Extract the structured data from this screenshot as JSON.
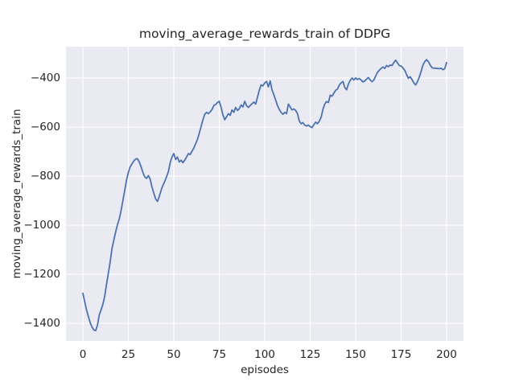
{
  "chart_data": {
    "type": "line",
    "title": "moving_average_rewards_train of DDPG",
    "xlabel": "episodes",
    "ylabel": "moving_average_rewards_train",
    "legend": null,
    "grid": true,
    "style": {
      "axes_background": "#eaeaf2",
      "gridline_color": "#ffffff",
      "line_color": "#4c72b0",
      "line_width": 1.8,
      "text_color": "#262626",
      "figure_background": "#ffffff"
    },
    "x_axis": {
      "ticks": [
        0,
        25,
        50,
        75,
        100,
        125,
        150,
        175,
        200
      ],
      "tick_labels": [
        "0",
        "25",
        "50",
        "75",
        "100",
        "125",
        "150",
        "175",
        "200"
      ],
      "range": [
        -9.3,
        209.3
      ]
    },
    "y_axis": {
      "ticks": [
        -400,
        -600,
        -800,
        -1000,
        -1200,
        -1400
      ],
      "tick_labels": [
        "−400",
        "−600",
        "−800",
        "−1000",
        "−1200",
        "−1400"
      ],
      "range": [
        -1472,
        -272
      ]
    },
    "x": [
      0,
      1,
      2,
      3,
      4,
      5,
      6,
      7,
      8,
      9,
      10,
      11,
      12,
      13,
      14,
      15,
      16,
      17,
      18,
      19,
      20,
      21,
      22,
      23,
      24,
      25,
      26,
      27,
      28,
      29,
      30,
      31,
      32,
      33,
      34,
      35,
      36,
      37,
      38,
      39,
      40,
      41,
      42,
      43,
      44,
      45,
      46,
      47,
      48,
      49,
      50,
      51,
      52,
      53,
      54,
      55,
      56,
      57,
      58,
      59,
      60,
      61,
      62,
      63,
      64,
      65,
      66,
      67,
      68,
      69,
      70,
      71,
      72,
      73,
      74,
      75,
      76,
      77,
      78,
      79,
      80,
      81,
      82,
      83,
      84,
      85,
      86,
      87,
      88,
      89,
      90,
      91,
      92,
      93,
      94,
      95,
      96,
      97,
      98,
      99,
      100,
      101,
      102,
      103,
      104,
      105,
      106,
      107,
      108,
      109,
      110,
      111,
      112,
      113,
      114,
      115,
      116,
      117,
      118,
      119,
      120,
      121,
      122,
      123,
      124,
      125,
      126,
      127,
      128,
      129,
      130,
      131,
      132,
      133,
      134,
      135,
      136,
      137,
      138,
      139,
      140,
      141,
      142,
      143,
      144,
      145,
      146,
      147,
      148,
      149,
      150,
      151,
      152,
      153,
      154,
      155,
      156,
      157,
      158,
      159,
      160,
      161,
      162,
      163,
      164,
      165,
      166,
      167,
      168,
      169,
      170,
      171,
      172,
      173,
      174,
      175,
      176,
      177,
      178,
      179,
      180,
      181,
      182,
      183,
      184,
      185,
      186,
      187,
      188,
      189,
      190,
      191,
      192,
      193,
      194,
      195,
      196,
      197,
      198,
      199,
      200
    ],
    "values": [
      -1278,
      -1312,
      -1345,
      -1372,
      -1398,
      -1415,
      -1427,
      -1430,
      -1408,
      -1365,
      -1345,
      -1322,
      -1290,
      -1240,
      -1195,
      -1150,
      -1095,
      -1062,
      -1028,
      -998,
      -975,
      -940,
      -900,
      -858,
      -815,
      -785,
      -762,
      -750,
      -738,
      -730,
      -729,
      -742,
      -762,
      -785,
      -803,
      -809,
      -798,
      -812,
      -845,
      -870,
      -893,
      -903,
      -883,
      -858,
      -838,
      -822,
      -802,
      -782,
      -745,
      -722,
      -708,
      -732,
      -722,
      -742,
      -735,
      -745,
      -735,
      -722,
      -708,
      -712,
      -698,
      -685,
      -668,
      -650,
      -625,
      -598,
      -570,
      -548,
      -540,
      -545,
      -538,
      -528,
      -512,
      -508,
      -500,
      -495,
      -520,
      -550,
      -570,
      -558,
      -545,
      -552,
      -530,
      -540,
      -520,
      -532,
      -525,
      -510,
      -518,
      -495,
      -512,
      -520,
      -512,
      -505,
      -498,
      -506,
      -478,
      -450,
      -428,
      -432,
      -420,
      -414,
      -436,
      -412,
      -448,
      -468,
      -490,
      -512,
      -528,
      -540,
      -548,
      -540,
      -545,
      -506,
      -518,
      -530,
      -526,
      -532,
      -545,
      -575,
      -586,
      -582,
      -592,
      -596,
      -592,
      -598,
      -602,
      -590,
      -580,
      -586,
      -576,
      -560,
      -528,
      -506,
      -496,
      -500,
      -470,
      -474,
      -462,
      -450,
      -445,
      -428,
      -420,
      -414,
      -438,
      -448,
      -424,
      -410,
      -400,
      -408,
      -400,
      -406,
      -402,
      -408,
      -416,
      -412,
      -404,
      -398,
      -408,
      -415,
      -408,
      -392,
      -377,
      -368,
      -361,
      -355,
      -361,
      -349,
      -354,
      -347,
      -349,
      -337,
      -327,
      -339,
      -349,
      -351,
      -359,
      -368,
      -386,
      -401,
      -395,
      -406,
      -420,
      -428,
      -415,
      -396,
      -373,
      -347,
      -333,
      -325,
      -333,
      -347,
      -358,
      -360,
      -360,
      -361,
      -362,
      -360,
      -366,
      -362,
      -337
    ]
  }
}
